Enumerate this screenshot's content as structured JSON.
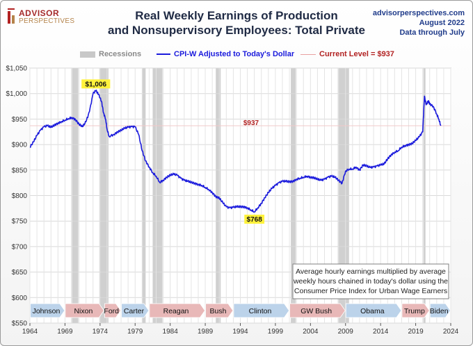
{
  "header": {
    "logo_line1": "ADVISOR",
    "logo_line2": "PERSPECTIVES",
    "title_line1": "Real Weekly Earnings of Production",
    "title_line2": "and Nonsupervisory Employees: Total Private",
    "source_line1": "advisorperspectives.com",
    "source_line2": "August 2022",
    "source_line3": "Data through July"
  },
  "legend": {
    "recessions": "Recessions",
    "series": "CPI-W Adjusted to Today's Dollar",
    "current": "Current Level = $937"
  },
  "colors": {
    "series": "#1a1adc",
    "recession": "#c8c8c8",
    "current_level": "#b22222",
    "annotation_bg": "#fff23c",
    "dem_arrow": "#bcd3ea",
    "rep_arrow": "#e8b8b8"
  },
  "note": {
    "line1": "Average hourly earnings multiplied by average",
    "line2": "weekly hours chained in today's dollar using the",
    "line3": "Consumer Price Index for Urban Wage Earners"
  },
  "chart_data": {
    "type": "line",
    "title": "Real Weekly Earnings of Production and Nonsupervisory Employees: Total Private",
    "xlabel": "",
    "ylabel": "",
    "xlim": [
      1964,
      2024
    ],
    "ylim": [
      550,
      1050
    ],
    "x_ticks": [
      "1964",
      "1969",
      "1974",
      "1979",
      "1984",
      "1989",
      "1994",
      "1999",
      "2004",
      "2009",
      "2014",
      "2019",
      "2024"
    ],
    "y_ticks": [
      "$550",
      "$600",
      "$650",
      "$700",
      "$750",
      "$800",
      "$850",
      "$900",
      "$950",
      "$1,000",
      "$1,050"
    ],
    "grid": true,
    "legend_position": "top",
    "series": [
      {
        "name": "CPI-W Adjusted to Today's Dollar",
        "points": [
          [
            1964.0,
            895
          ],
          [
            1964.5,
            905
          ],
          [
            1965.0,
            918
          ],
          [
            1965.5,
            928
          ],
          [
            1966.0,
            935
          ],
          [
            1966.5,
            937
          ],
          [
            1967.0,
            934
          ],
          [
            1967.5,
            938
          ],
          [
            1968.0,
            942
          ],
          [
            1968.5,
            945
          ],
          [
            1969.0,
            948
          ],
          [
            1969.5,
            951
          ],
          [
            1970.0,
            953
          ],
          [
            1970.5,
            949
          ],
          [
            1971.0,
            940
          ],
          [
            1971.5,
            935
          ],
          [
            1972.0,
            945
          ],
          [
            1972.5,
            965
          ],
          [
            1973.0,
            1000
          ],
          [
            1973.4,
            1006
          ],
          [
            1973.8,
            998
          ],
          [
            1974.2,
            985
          ],
          [
            1974.5,
            962
          ],
          [
            1974.8,
            950
          ],
          [
            1975.0,
            930
          ],
          [
            1975.3,
            916
          ],
          [
            1976.0,
            920
          ],
          [
            1976.5,
            925
          ],
          [
            1977.0,
            928
          ],
          [
            1977.5,
            932
          ],
          [
            1978.0,
            934
          ],
          [
            1978.5,
            935
          ],
          [
            1979.0,
            935
          ],
          [
            1979.5,
            920
          ],
          [
            1980.0,
            888
          ],
          [
            1980.5,
            868
          ],
          [
            1981.0,
            856
          ],
          [
            1981.5,
            845
          ],
          [
            1982.0,
            838
          ],
          [
            1982.5,
            826
          ],
          [
            1983.0,
            830
          ],
          [
            1983.5,
            836
          ],
          [
            1984.0,
            840
          ],
          [
            1984.5,
            842
          ],
          [
            1985.0,
            840
          ],
          [
            1985.5,
            834
          ],
          [
            1986.0,
            830
          ],
          [
            1986.5,
            828
          ],
          [
            1987.0,
            826
          ],
          [
            1987.5,
            824
          ],
          [
            1988.0,
            822
          ],
          [
            1988.5,
            820
          ],
          [
            1989.0,
            816
          ],
          [
            1989.5,
            812
          ],
          [
            1990.0,
            806
          ],
          [
            1990.5,
            798
          ],
          [
            1991.0,
            795
          ],
          [
            1991.5,
            786
          ],
          [
            1992.0,
            778
          ],
          [
            1992.5,
            776
          ],
          [
            1993.0,
            777
          ],
          [
            1993.5,
            778
          ],
          [
            1994.0,
            778
          ],
          [
            1994.5,
            778
          ],
          [
            1995.0,
            776
          ],
          [
            1995.5,
            772
          ],
          [
            1996.0,
            768
          ],
          [
            1996.5,
            776
          ],
          [
            1997.0,
            785
          ],
          [
            1997.5,
            796
          ],
          [
            1998.0,
            806
          ],
          [
            1998.5,
            814
          ],
          [
            1999.0,
            820
          ],
          [
            1999.5,
            825
          ],
          [
            2000.0,
            828
          ],
          [
            2000.5,
            828
          ],
          [
            2001.0,
            827
          ],
          [
            2001.5,
            828
          ],
          [
            2002.0,
            832
          ],
          [
            2002.5,
            834
          ],
          [
            2003.0,
            836
          ],
          [
            2003.5,
            838
          ],
          [
            2004.0,
            836
          ],
          [
            2004.5,
            835
          ],
          [
            2005.0,
            832
          ],
          [
            2005.5,
            830
          ],
          [
            2006.0,
            832
          ],
          [
            2006.5,
            836
          ],
          [
            2007.0,
            838
          ],
          [
            2007.5,
            836
          ],
          [
            2008.0,
            830
          ],
          [
            2008.5,
            824
          ],
          [
            2009.0,
            848
          ],
          [
            2009.5,
            852
          ],
          [
            2010.0,
            852
          ],
          [
            2010.5,
            856
          ],
          [
            2011.0,
            850
          ],
          [
            2011.5,
            860
          ],
          [
            2012.0,
            858
          ],
          [
            2012.5,
            855
          ],
          [
            2013.0,
            856
          ],
          [
            2013.5,
            858
          ],
          [
            2014.0,
            860
          ],
          [
            2014.5,
            862
          ],
          [
            2015.0,
            872
          ],
          [
            2015.5,
            880
          ],
          [
            2016.0,
            885
          ],
          [
            2016.5,
            888
          ],
          [
            2017.0,
            895
          ],
          [
            2017.5,
            898
          ],
          [
            2018.0,
            900
          ],
          [
            2018.5,
            902
          ],
          [
            2019.0,
            908
          ],
          [
            2019.5,
            915
          ],
          [
            2020.0,
            925
          ],
          [
            2020.25,
            995
          ],
          [
            2020.5,
            978
          ],
          [
            2020.8,
            985
          ],
          [
            2021.0,
            980
          ],
          [
            2021.5,
            975
          ],
          [
            2022.0,
            960
          ],
          [
            2022.3,
            950
          ],
          [
            2022.58,
            937
          ]
        ]
      }
    ],
    "recessions": [
      [
        1969.9,
        1970.9
      ],
      [
        1973.9,
        1975.2
      ],
      [
        1980.0,
        1980.5
      ],
      [
        1981.5,
        1982.9
      ],
      [
        1990.5,
        1991.2
      ],
      [
        2001.2,
        2001.9
      ],
      [
        2007.9,
        2009.5
      ],
      [
        2020.1,
        2020.4
      ]
    ],
    "current_level": 937,
    "annotations": [
      {
        "label": "$1,006",
        "x": 1973.4,
        "y": 1006,
        "style": "highlight"
      },
      {
        "label": "$768",
        "x": 1996.0,
        "y": 768,
        "style": "highlight"
      },
      {
        "label": "$937",
        "x": 2022.58,
        "y": 937,
        "style": "current"
      }
    ],
    "presidents": [
      {
        "name": "Johnson",
        "start": 1964.0,
        "end": 1969.0,
        "party": "dem"
      },
      {
        "name": "Nixon",
        "start": 1969.0,
        "end": 1974.6,
        "party": "rep"
      },
      {
        "name": "Ford",
        "start": 1974.6,
        "end": 1977.0,
        "party": "rep"
      },
      {
        "name": "Carter",
        "start": 1977.0,
        "end": 1981.0,
        "party": "dem"
      },
      {
        "name": "Reagan",
        "start": 1981.0,
        "end": 1989.0,
        "party": "rep"
      },
      {
        "name": "Bush",
        "start": 1989.0,
        "end": 1993.0,
        "party": "rep"
      },
      {
        "name": "Clinton",
        "start": 1993.0,
        "end": 2001.0,
        "party": "dem"
      },
      {
        "name": "GW Bush",
        "start": 2001.0,
        "end": 2009.0,
        "party": "rep"
      },
      {
        "name": "Obama",
        "start": 2009.0,
        "end": 2017.0,
        "party": "dem"
      },
      {
        "name": "Trump",
        "start": 2017.0,
        "end": 2021.0,
        "party": "rep"
      },
      {
        "name": "Biden",
        "start": 2021.0,
        "end": 2024.0,
        "party": "dem"
      }
    ]
  }
}
